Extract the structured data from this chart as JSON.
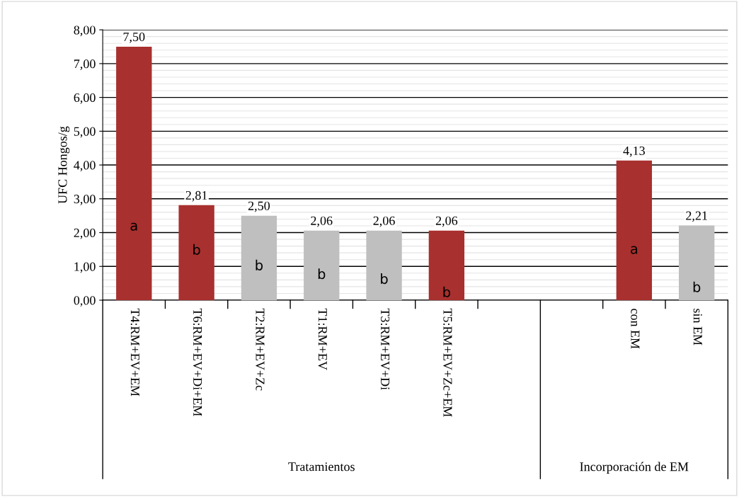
{
  "chart_data": {
    "type": "bar",
    "ylabel": "UFC Hongos/g",
    "categories": [
      "T4:RM+EV+EM",
      "T6:RM+EV+Di+EM",
      "T2:RM+EV+Zc",
      "T1:RM+EV",
      "T3:RM+EV+Di",
      "T5:RM+EV+Zc+EM",
      null,
      null,
      "con EM",
      "sin EM"
    ],
    "values": [
      7.5,
      2.81,
      2.5,
      2.06,
      2.06,
      2.06,
      null,
      null,
      4.13,
      2.21
    ],
    "value_labels": [
      "7,50",
      "2,81",
      "2,50",
      "2,06",
      "2,06",
      "2,06",
      null,
      null,
      "4,13",
      "2,21"
    ],
    "colors": [
      "#a8302e",
      "#a8302e",
      "#bfbfbf",
      "#bfbfbf",
      "#bfbfbf",
      "#a8302e",
      "#bfbfbf",
      "#bfbfbf",
      "#a8302e",
      "#bfbfbf"
    ],
    "ylim": [
      0,
      8
    ],
    "yticks": [
      {
        "value": 0,
        "label": "0,00"
      },
      {
        "value": 1,
        "label": "1,00"
      },
      {
        "value": 2,
        "label": "2,00"
      },
      {
        "value": 3,
        "label": "3,00"
      },
      {
        "value": 4,
        "label": "4,00"
      },
      {
        "value": 5,
        "label": "5,00"
      },
      {
        "value": 6,
        "label": "6,00"
      },
      {
        "value": 7,
        "label": "7,00"
      },
      {
        "value": 8,
        "label": "8,00"
      }
    ],
    "grid": "y",
    "legend": false,
    "annotations": [
      "a",
      "b",
      "b",
      "b",
      "b",
      "b",
      "a",
      "b",
      "Tratamientos",
      "Incorporación de EM"
    ]
  }
}
